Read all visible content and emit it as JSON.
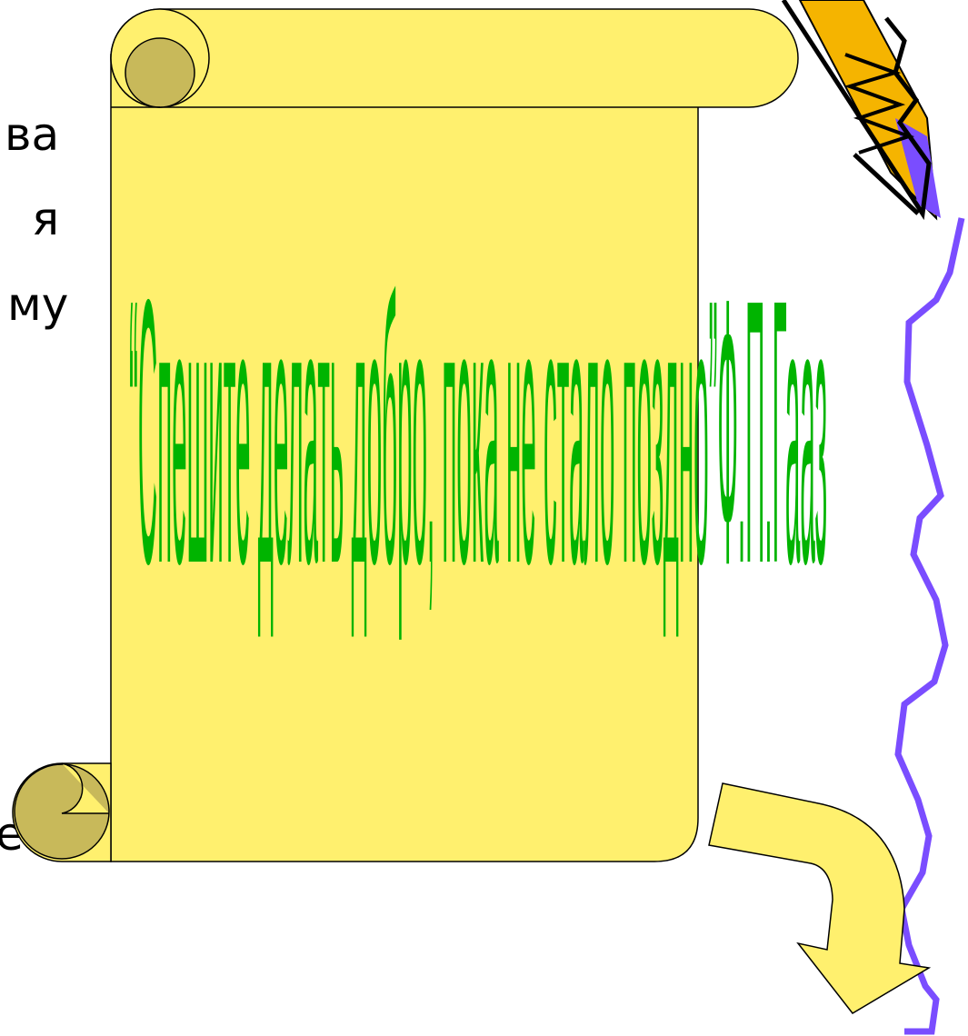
{
  "fragments": [
    "ва",
    "я",
    "му",
    "е"
  ],
  "quote": "“Спешите делать добро, пока не стало поздно”Ф.П.Гааз"
}
